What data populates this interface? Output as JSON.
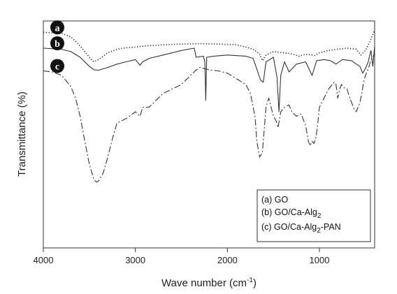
{
  "chart_data": {
    "type": "line",
    "xlabel": "Wave number (cm",
    "xlabel_sup": "-1",
    "xlabel_close": ")",
    "ylabel": "Transmittance (%)",
    "xlim": [
      4000,
      400
    ],
    "x_reversed": true,
    "ylim": [
      0,
      100
    ],
    "y_ticks_shown": false,
    "x_ticks": [
      4000,
      3000,
      2000,
      1000
    ],
    "x_tick_labels": [
      "4000",
      "3000",
      "2000",
      "1000"
    ],
    "grid": false,
    "legend_placement": "bottom-right",
    "legend": [
      {
        "prefix": "(a) GO",
        "suffix": "",
        "sub": "",
        "tail": ""
      },
      {
        "prefix": "(b) GO/Ca-Alg",
        "sub": "2",
        "tail": ""
      },
      {
        "prefix": "(c) GO/Ca-Alg",
        "sub": "2",
        "tail": "-PAN"
      }
    ],
    "series_badges": [
      "a",
      "b",
      "c"
    ],
    "series": [
      {
        "id": "a",
        "style": "dotted",
        "color": "#222222",
        "x": [
          4000,
          3800,
          3700,
          3600,
          3500,
          3450,
          3400,
          3300,
          3200,
          3100,
          3000,
          2900,
          2700,
          2500,
          2300,
          2100,
          1900,
          1800,
          1720,
          1650,
          1620,
          1580,
          1500,
          1400,
          1300,
          1220,
          1150,
          1050,
          1000,
          900,
          800,
          700,
          600,
          550,
          500,
          450,
          400
        ],
        "y": [
          95,
          94.5,
          93,
          89,
          84,
          82,
          83,
          86,
          87.5,
          88.2,
          88.5,
          89,
          89.5,
          89.8,
          90,
          89.8,
          89.5,
          88.5,
          87.5,
          85.5,
          82.5,
          85,
          86.5,
          86,
          85.5,
          84.5,
          85.3,
          84.8,
          86,
          87,
          87.5,
          88,
          87.5,
          85,
          87,
          91,
          96
        ]
      },
      {
        "id": "b",
        "style": "solid",
        "color": "#333333",
        "x": [
          4000,
          3800,
          3700,
          3600,
          3500,
          3450,
          3400,
          3300,
          3200,
          3100,
          3000,
          2950,
          2920,
          2850,
          2700,
          2500,
          2360,
          2340,
          2260,
          2245,
          2235,
          2225,
          2150,
          2000,
          1800,
          1720,
          1640,
          1610,
          1580,
          1500,
          1460,
          1440,
          1420,
          1380,
          1330,
          1250,
          1150,
          1080,
          1030,
          950,
          880,
          820,
          750,
          650,
          600,
          560,
          530,
          500,
          470,
          440,
          420,
          400
        ],
        "y": [
          88,
          87.5,
          86.5,
          84,
          80,
          78.5,
          78.3,
          79.5,
          81,
          82,
          83,
          80.5,
          82,
          83.5,
          85,
          87,
          88,
          84,
          84.5,
          82,
          65,
          84,
          84.5,
          85,
          84.5,
          83.5,
          74,
          73,
          82,
          84,
          75,
          60,
          76,
          82,
          77.5,
          81,
          82,
          76,
          82.5,
          83,
          82.5,
          81,
          83,
          82.5,
          81,
          80,
          77,
          79,
          82,
          87,
          80,
          89
        ]
      },
      {
        "id": "c",
        "style": "dashdot",
        "color": "#333333",
        "x": [
          4000,
          3900,
          3800,
          3700,
          3650,
          3600,
          3550,
          3500,
          3450,
          3420,
          3400,
          3350,
          3300,
          3250,
          3200,
          3100,
          3000,
          2950,
          2920,
          2850,
          2700,
          2500,
          2350,
          2300,
          2200,
          2100,
          2000,
          1900,
          1800,
          1750,
          1700,
          1680,
          1650,
          1620,
          1600,
          1580,
          1550,
          1500,
          1470,
          1450,
          1420,
          1400,
          1380,
          1330,
          1300,
          1250,
          1200,
          1150,
          1120,
          1100,
          1080,
          1060,
          1040,
          1020,
          1000,
          950,
          900,
          860,
          840,
          820,
          800,
          780,
          760,
          730,
          700,
          670,
          650,
          620,
          600,
          580,
          560,
          540,
          520,
          500,
          480,
          460,
          440,
          420,
          400
        ],
        "y": [
          78,
          77.5,
          76,
          71,
          66,
          58,
          47,
          37,
          30,
          29,
          29.5,
          33,
          40,
          48,
          55,
          57,
          60,
          58,
          62,
          62,
          68,
          72,
          78,
          79.5,
          78.5,
          78,
          77,
          74.5,
          72,
          68,
          58,
          47,
          40,
          42,
          52,
          62,
          66,
          58,
          56,
          53,
          60,
          61,
          62,
          63,
          60,
          58,
          59,
          54,
          47,
          45,
          47,
          46,
          48,
          54,
          62,
          66,
          70,
          72,
          73,
          72,
          66,
          70,
          72,
          70.5,
          70,
          66,
          64,
          61,
          60,
          62,
          64,
          68,
          73,
          76,
          78,
          80,
          83,
          84,
          86
        ]
      }
    ]
  }
}
